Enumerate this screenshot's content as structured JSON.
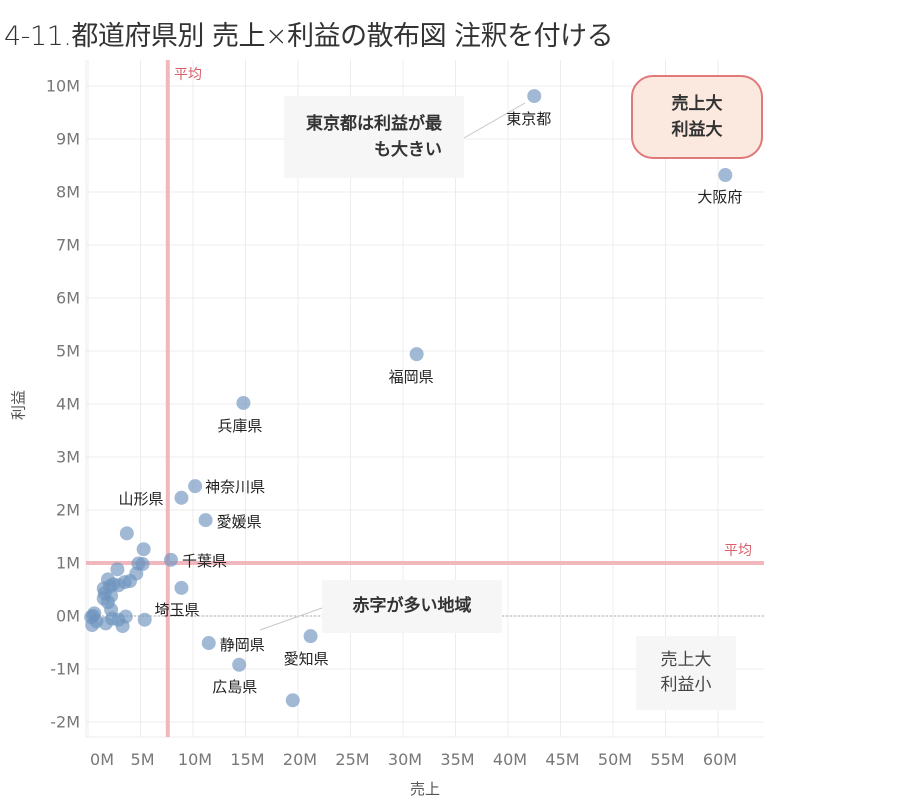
{
  "title": "4-11.都道府県別 売上×利益の散布図 注釈を付ける",
  "chart_data": {
    "type": "scatter",
    "title": "4-11.都道府県別 売上×利益の散布図 注釈を付ける",
    "xlabel": "売上",
    "ylabel": "利益",
    "xlim": [
      -1.3,
      64.5
    ],
    "ylim": [
      -2.3,
      10.4
    ],
    "grid": true,
    "x_ticks": [
      "0M",
      "5M",
      "10M",
      "15M",
      "20M",
      "25M",
      "30M",
      "35M",
      "40M",
      "45M",
      "50M",
      "55M",
      "60M"
    ],
    "y_ticks": [
      "10M",
      "9M",
      "8M",
      "7M",
      "6M",
      "5M",
      "4M",
      "3M",
      "2M",
      "1M",
      "0M",
      "-1M",
      "-2M"
    ],
    "reference_lines": [
      {
        "axis": "x",
        "value": 7.6,
        "label": "平均",
        "color": "#f0b8bc"
      },
      {
        "axis": "y",
        "value": 1.0,
        "label": "平均",
        "color": "#f0b8bc"
      },
      {
        "axis": "y",
        "value": 0,
        "label": "",
        "style": "dotted",
        "color": "#aaaaaa"
      }
    ],
    "units": "M (millions)",
    "points": [
      {
        "name": "東京都",
        "x": 42.5,
        "y": 9.81,
        "labeled": true
      },
      {
        "name": "大阪府",
        "x": 60.7,
        "y": 8.32,
        "labeled": true
      },
      {
        "name": "福岡県",
        "x": 31.3,
        "y": 4.94,
        "labeled": true
      },
      {
        "name": "兵庫県",
        "x": 14.8,
        "y": 4.02,
        "labeled": true
      },
      {
        "name": "神奈川県",
        "x": 10.2,
        "y": 2.45,
        "labeled": true
      },
      {
        "name": "山形県",
        "x": 8.9,
        "y": 2.23,
        "labeled": true
      },
      {
        "name": "愛媛県",
        "x": 11.2,
        "y": 1.81,
        "labeled": true
      },
      {
        "name": "千葉県",
        "x": 7.9,
        "y": 1.06,
        "labeled": true
      },
      {
        "name": "埼玉県",
        "x": 8.9,
        "y": 0.53,
        "labeled": true
      },
      {
        "name": "静岡県",
        "x": 11.5,
        "y": -0.51,
        "labeled": true
      },
      {
        "name": "愛知県",
        "x": 21.2,
        "y": -0.38,
        "labeled": true
      },
      {
        "name": "広島県",
        "x": 14.4,
        "y": -0.92,
        "labeled": true
      },
      {
        "name": "",
        "x": 19.5,
        "y": -1.59,
        "labeled": false
      },
      {
        "name": "",
        "x": 3.7,
        "y": 1.56,
        "labeled": false
      },
      {
        "name": "",
        "x": 5.3,
        "y": 1.26,
        "labeled": false
      },
      {
        "name": "",
        "x": 4.8,
        "y": 0.99,
        "labeled": false
      },
      {
        "name": "",
        "x": 5.2,
        "y": 0.98,
        "labeled": false
      },
      {
        "name": "",
        "x": 2.8,
        "y": 0.88,
        "labeled": false
      },
      {
        "name": "",
        "x": 4.6,
        "y": 0.8,
        "labeled": false
      },
      {
        "name": "",
        "x": 1.9,
        "y": 0.69,
        "labeled": false
      },
      {
        "name": "",
        "x": 4.0,
        "y": 0.66,
        "labeled": false
      },
      {
        "name": "",
        "x": 3.5,
        "y": 0.64,
        "labeled": false
      },
      {
        "name": "",
        "x": 2.4,
        "y": 0.6,
        "labeled": false
      },
      {
        "name": "",
        "x": 2.9,
        "y": 0.58,
        "labeled": false
      },
      {
        "name": "",
        "x": 2.1,
        "y": 0.56,
        "labeled": false
      },
      {
        "name": "",
        "x": 1.5,
        "y": 0.52,
        "labeled": false
      },
      {
        "name": "",
        "x": 1.6,
        "y": 0.43,
        "labeled": false
      },
      {
        "name": "",
        "x": 2.2,
        "y": 0.38,
        "labeled": false
      },
      {
        "name": "",
        "x": 1.5,
        "y": 0.33,
        "labeled": false
      },
      {
        "name": "",
        "x": 1.9,
        "y": 0.26,
        "labeled": false
      },
      {
        "name": "",
        "x": 2.2,
        "y": 0.12,
        "labeled": false
      },
      {
        "name": "",
        "x": 0.6,
        "y": 0.05,
        "labeled": false
      },
      {
        "name": "",
        "x": 0.5,
        "y": 0.0,
        "labeled": false
      },
      {
        "name": "",
        "x": 0.3,
        "y": -0.02,
        "labeled": false
      },
      {
        "name": "",
        "x": 3.6,
        "y": -0.01,
        "labeled": false
      },
      {
        "name": "",
        "x": 2.3,
        "y": -0.05,
        "labeled": false
      },
      {
        "name": "",
        "x": 2.9,
        "y": -0.07,
        "labeled": false
      },
      {
        "name": "",
        "x": 5.4,
        "y": -0.07,
        "labeled": false
      },
      {
        "name": "",
        "x": 0.8,
        "y": -0.1,
        "labeled": false
      },
      {
        "name": "",
        "x": 1.7,
        "y": -0.14,
        "labeled": false
      },
      {
        "name": "",
        "x": 0.4,
        "y": -0.17,
        "labeled": false
      },
      {
        "name": "",
        "x": 3.3,
        "y": -0.19,
        "labeled": false
      }
    ],
    "annotations": [
      {
        "text": "東京都は利益が最も大きい",
        "target": "東京都"
      },
      {
        "text": "売上大 利益大",
        "style": "rounded-red"
      },
      {
        "text": "赤字が多い地域",
        "target": "静岡県"
      },
      {
        "text": "売上大 利益小",
        "style": "plain"
      }
    ]
  },
  "labels": {
    "avg_vertical": "平均",
    "avg_horizontal": "平均",
    "ann_tokyo_line1": "東京都は利益が最",
    "ann_tokyo_line2": "も大きい",
    "ann_bigbig_line1": "売上大",
    "ann_bigbig_line2": "利益大",
    "ann_deficit": "赤字が多い地域",
    "ann_bigsmall_line1": "売上大",
    "ann_bigsmall_line2": "利益小"
  },
  "colors": {
    "point": "#6f94bf",
    "avg_line": "#f0b8bc",
    "avg_text": "#d9606a",
    "highlight_border": "#e0797a",
    "highlight_fill": "#fbe9e0"
  }
}
